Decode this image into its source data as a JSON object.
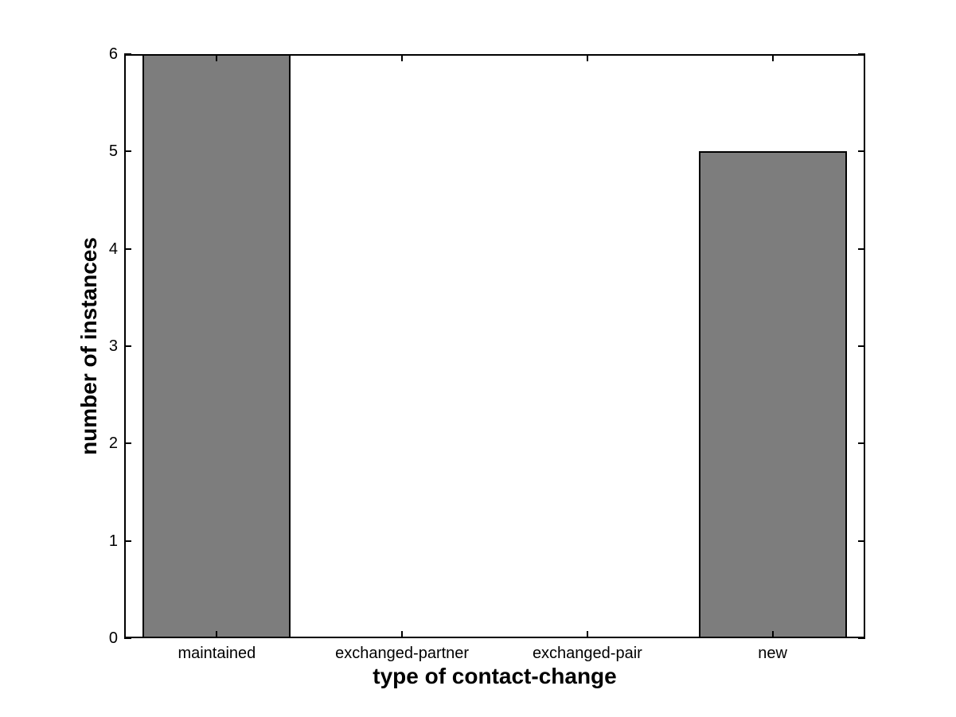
{
  "chart_data": {
    "type": "bar",
    "categories": [
      "maintained",
      "exchanged-partner",
      "exchanged-pair",
      "new"
    ],
    "values": [
      6,
      0,
      0,
      5
    ],
    "title": "",
    "xlabel": "type of contact-change",
    "ylabel": "number of instances",
    "ylim": [
      0,
      6
    ],
    "yticks": [
      "0",
      "1",
      "2",
      "3",
      "4",
      "5",
      "6"
    ],
    "grid": false,
    "legend": "none",
    "bar_width_fraction": 0.8,
    "bar_fill_color": "#7d7d7d",
    "bar_edge_color": "#000000",
    "axis_color": "#000000",
    "background_color": "#ffffff",
    "tick_direction": "in",
    "box": true
  }
}
